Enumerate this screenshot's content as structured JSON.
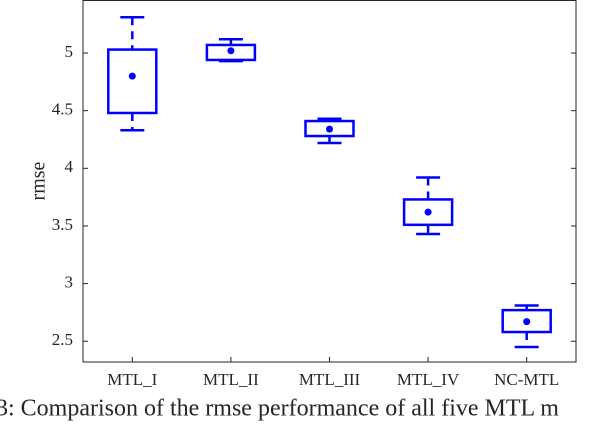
{
  "chart_data": {
    "type": "box",
    "ylabel": "rmse",
    "caption": "3: Comparison of the rmse performance of all five MTL m",
    "categories": [
      "MTL_I",
      "MTL_II",
      "MTL_III",
      "MTL_IV",
      "NC-MTL"
    ],
    "color": "#0000ff",
    "boxes": [
      {
        "min": 4.33,
        "q1": 4.48,
        "q3": 5.03,
        "max": 5.31,
        "mean": 4.8
      },
      {
        "min": 4.93,
        "q1": 4.94,
        "q3": 5.07,
        "max": 5.12,
        "mean": 5.02
      },
      {
        "min": 4.22,
        "q1": 4.28,
        "q3": 4.41,
        "max": 4.43,
        "mean": 4.34
      },
      {
        "min": 3.43,
        "q1": 3.51,
        "q3": 3.73,
        "max": 3.92,
        "mean": 3.62
      },
      {
        "min": 2.45,
        "q1": 2.58,
        "q3": 2.77,
        "max": 2.81,
        "mean": 2.67
      }
    ],
    "ylim": [
      2.32,
      5.46
    ],
    "yticks": [
      2.5,
      3,
      3.5,
      4,
      4.5,
      5
    ]
  }
}
